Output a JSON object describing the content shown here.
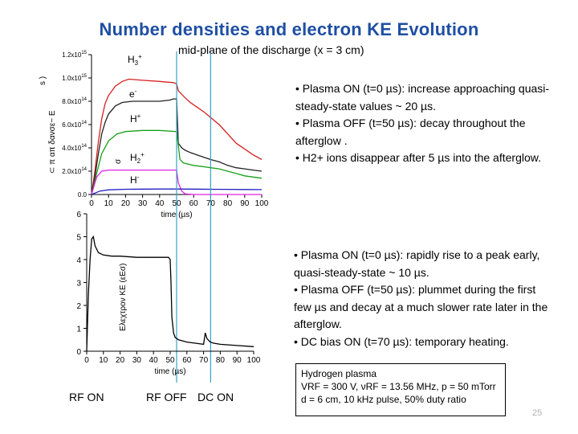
{
  "title": "Number densities and electron KE Evolution",
  "subtitle": "mid-plane of the discharge (x = 3 cm)",
  "bullets_top": [
    "• Plasma ON (t=0 µs): increase approaching quasi-steady-state values ~ 20 µs.",
    "• Plasma OFF (t=50 µs): decay throughout the afterglow .",
    "• H2+ ions disappear after 5 µs into the afterglow."
  ],
  "bullets_bottom": [
    "• Plasma ON (t=0 µs): rapidly rise to a peak early, quasi-steady-state ~ 10 µs.",
    "• Plasma OFF (t=50 µs): plummet during the first few µs and decay at a much slower rate later in the afterglow.",
    "• DC bias ON (t=70 µs): temporary heating."
  ],
  "infobox": [
    "Hydrogen plasma",
    "VRF = 300 V, νRF = 13.56 MHz, p = 50 mTorr",
    "d = 6 cm, 10 kHz pulse, 50% duty ratio"
  ],
  "labels": {
    "rf_on": "RF ON",
    "rf_off": "RF OFF",
    "dc_on": "DC ON"
  },
  "page_number": "25",
  "colors": {
    "title": "#1f4fa3",
    "H3+": "#d62020",
    "e-": "#222222",
    "H+": "#18a018",
    "H2+": "#e020e0",
    "H-": "#2020c0",
    "marker_lines": "#3aa0c8"
  },
  "chart_data": [
    {
      "type": "line",
      "xlabel": "time (µs)",
      "ylabel": "",
      "xlim": [
        0,
        100
      ],
      "ylim": [
        0,
        1200000000000000.0
      ],
      "x_ticks": [
        "0",
        "10",
        "20",
        "30",
        "40",
        "50",
        "60",
        "70",
        "80",
        "90",
        "100"
      ],
      "y_ticks": [
        {
          "value": 0,
          "label": "0.0"
        },
        {
          "value": 200000000000000.0,
          "label": "2.0x10^14"
        },
        {
          "value": 400000000000000.0,
          "label": "4.0x10^14"
        },
        {
          "value": 600000000000000.0,
          "label": "6.0x10^14"
        },
        {
          "value": 800000000000000.0,
          "label": "8.0x10^14"
        },
        {
          "value": 1000000000000000.0,
          "label": "1.0x10^15"
        },
        {
          "value": 1200000000000000.0,
          "label": "1.2x10^15"
        }
      ],
      "series": [
        {
          "name": "H3+",
          "color": "#d62020",
          "x": [
            0,
            2,
            4,
            6,
            8,
            10,
            14,
            18,
            22,
            30,
            40,
            48,
            50,
            51,
            53,
            55,
            58,
            62,
            66,
            70,
            75,
            80,
            85,
            90,
            95,
            100
          ],
          "y": [
            0,
            200000000000000.0,
            450000000000000.0,
            650000000000000.0,
            780000000000000.0,
            850000000000000.0,
            930000000000000.0,
            970000000000000.0,
            990000000000000.0,
            980000000000000.0,
            970000000000000.0,
            960000000000000.0,
            950000000000000.0,
            890000000000000.0,
            860000000000000.0,
            830000000000000.0,
            790000000000000.0,
            750000000000000.0,
            710000000000000.0,
            660000000000000.0,
            600000000000000.0,
            520000000000000.0,
            440000000000000.0,
            390000000000000.0,
            340000000000000.0,
            300000000000000.0
          ]
        },
        {
          "name": "e-",
          "color": "#222222",
          "x": [
            0,
            2,
            4,
            6,
            8,
            10,
            14,
            18,
            24,
            30,
            40,
            46,
            48,
            50,
            51,
            53,
            55,
            58,
            62,
            66,
            70,
            75,
            80,
            85,
            90,
            95,
            100
          ],
          "y": [
            0,
            150000000000000.0,
            350000000000000.0,
            520000000000000.0,
            620000000000000.0,
            690000000000000.0,
            760000000000000.0,
            790000000000000.0,
            800000000000000.0,
            800000000000000.0,
            800000000000000.0,
            810000000000000.0,
            820000000000000.0,
            820000000000000.0,
            440000000000000.0,
            400000000000000.0,
            380000000000000.0,
            360000000000000.0,
            340000000000000.0,
            320000000000000.0,
            300000000000000.0,
            280000000000000.0,
            250000000000000.0,
            230000000000000.0,
            220000000000000.0,
            210000000000000.0,
            200000000000000.0
          ]
        },
        {
          "name": "H+",
          "color": "#18a018",
          "x": [
            0,
            3,
            6,
            10,
            15,
            20,
            30,
            40,
            50,
            52,
            54,
            57,
            60,
            65,
            70,
            75,
            80,
            85,
            90,
            95,
            100
          ],
          "y": [
            0,
            180000000000000.0,
            350000000000000.0,
            460000000000000.0,
            520000000000000.0,
            540000000000000.0,
            550000000000000.0,
            550000000000000.0,
            540000000000000.0,
            300000000000000.0,
            270000000000000.0,
            260000000000000.0,
            250000000000000.0,
            240000000000000.0,
            230000000000000.0,
            220000000000000.0,
            200000000000000.0,
            180000000000000.0,
            160000000000000.0,
            150000000000000.0,
            140000000000000.0
          ]
        },
        {
          "name": "H2+",
          "color": "#e020e0",
          "x": [
            0,
            3,
            6,
            10,
            20,
            30,
            40,
            50,
            51,
            53,
            55,
            60,
            70,
            80,
            90,
            100
          ],
          "y": [
            0,
            150000000000000.0,
            200000000000000.0,
            210000000000000.0,
            210000000000000.0,
            210000000000000.0,
            210000000000000.0,
            210000000000000.0,
            100000000000000.0,
            30000000000000.0,
            5000000000000.0,
            0,
            0,
            0,
            0,
            0
          ]
        },
        {
          "name": "H-",
          "color": "#2020c0",
          "x": [
            0,
            5,
            10,
            20,
            30,
            40,
            50,
            60,
            70,
            80,
            90,
            100
          ],
          "y": [
            0,
            30000000000000.0,
            40000000000000.0,
            45000000000000.0,
            46000000000000.0,
            47000000000000.0,
            47000000000000.0,
            46000000000000.0,
            45000000000000.0,
            44000000000000.0,
            43000000000000.0,
            42000000000000.0
          ]
        }
      ],
      "annotations": [
        "H3+",
        "e-",
        "H+",
        "H2+",
        "H-"
      ],
      "clipped_axis_label_fragments": [
        "s )",
        "⊂ π απ δανσε− E",
        "σ"
      ]
    },
    {
      "type": "line",
      "xlabel": "time (µs)",
      "ylabel": "",
      "xlim": [
        0,
        100
      ],
      "ylim": [
        0,
        6
      ],
      "x_ticks": [
        "0",
        "10",
        "20",
        "30",
        "40",
        "50",
        "60",
        "70",
        "80",
        "90",
        "100"
      ],
      "y_ticks": [
        {
          "value": 0,
          "label": "0"
        },
        {
          "value": 1,
          "label": "1"
        },
        {
          "value": 2,
          "label": "2"
        },
        {
          "value": 3,
          "label": "3"
        },
        {
          "value": 4,
          "label": "4"
        },
        {
          "value": 5,
          "label": "5"
        },
        {
          "value": 6,
          "label": "6"
        }
      ],
      "series": [
        {
          "name": "electron KE",
          "color": "#000000",
          "x": [
            0,
            1,
            2,
            3,
            4,
            5,
            7,
            10,
            15,
            20,
            30,
            40,
            45,
            49,
            50,
            50.5,
            51,
            52,
            53,
            55,
            60,
            65,
            70,
            71,
            72,
            74,
            76,
            80,
            90,
            100
          ],
          "y": [
            0,
            2.5,
            4.0,
            4.9,
            5.0,
            4.6,
            4.3,
            4.2,
            4.15,
            4.15,
            4.1,
            4.1,
            4.1,
            4.1,
            4.0,
            3.0,
            1.5,
            0.8,
            0.6,
            0.5,
            0.4,
            0.35,
            0.3,
            0.8,
            0.55,
            0.4,
            0.35,
            0.3,
            0.25,
            0.2
          ]
        }
      ],
      "clipped_axis_label_fragments": [
        "Eλεχτρον ΚΕ (εΕσ)"
      ]
    }
  ]
}
